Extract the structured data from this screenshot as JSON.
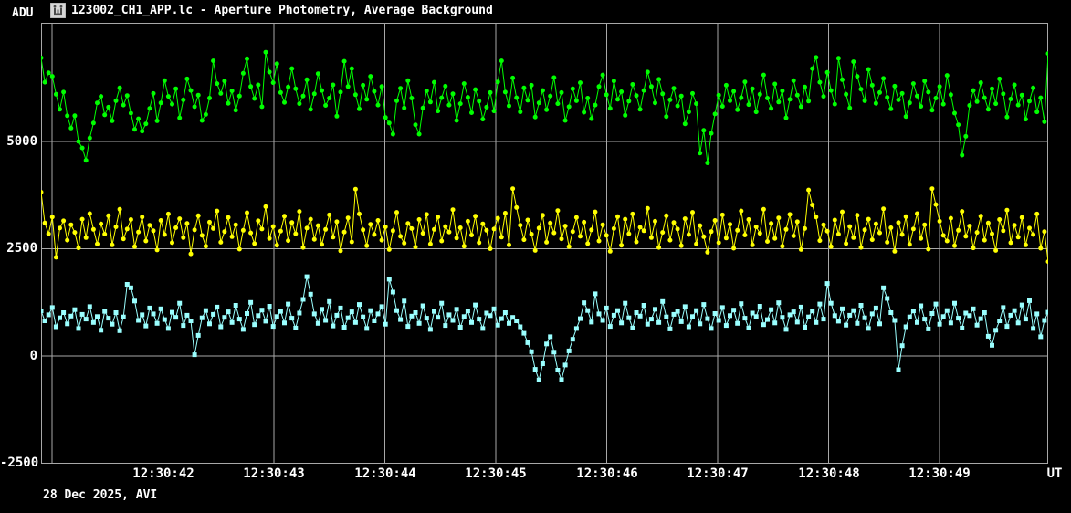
{
  "window": {
    "title": "123002_CH1_APP.lc - Aperture Photometry, Average Background",
    "footer": "28 Dec 2025, AVI",
    "icon": "app-window-icon"
  },
  "colors": {
    "background": "#000000",
    "text": "#FFFFFF",
    "grid": "#A8A8A8",
    "green_series": "#00FF00",
    "yellow_series": "#FFFF00",
    "cyan_series": "#9AFFFF"
  },
  "axes": {
    "y_label": "ADU",
    "x_label": "UT",
    "y_ticks": [
      "5000",
      "2500",
      "0",
      "-2500"
    ],
    "x_ticks": [
      "12:30:42",
      "12:30:43",
      "12:30:44",
      "12:30:45",
      "12:30:46",
      "12:30:47",
      "12:30:48",
      "12:30:49"
    ]
  },
  "chart_data": {
    "type": "line",
    "title": "123002_CH1_APP.lc - Aperture Photometry, Average Background",
    "xlabel": "UT",
    "ylabel": "ADU",
    "ylim": [
      -2510,
      7770
    ],
    "y_ticks": [
      5000,
      2500,
      0,
      -2500
    ],
    "x_ticks": [
      "12:30:42",
      "12:30:43",
      "12:30:44",
      "12:30:45",
      "12:30:46",
      "12:30:47",
      "12:30:48",
      "12:30:49"
    ],
    "grid": true,
    "legend": false,
    "series": [
      {
        "name": "green",
        "color": "#00FF00",
        "marker": "circle",
        "values": [
          6950,
          6380,
          6600,
          6520,
          6100,
          5750,
          6150,
          5600,
          5310,
          5600,
          5000,
          4850,
          4560,
          5080,
          5430,
          5900,
          6050,
          5620,
          5800,
          5480,
          5950,
          6250,
          5850,
          6070,
          5660,
          5280,
          5530,
          5240,
          5410,
          5770,
          6120,
          5480,
          5900,
          6420,
          6050,
          5870,
          6230,
          5550,
          5970,
          6460,
          6190,
          5810,
          6080,
          5490,
          5630,
          6010,
          6880,
          6350,
          6120,
          6410,
          5890,
          6180,
          5730,
          6060,
          6590,
          6930,
          6280,
          6000,
          6320,
          5810,
          7080,
          6620,
          6370,
          6810,
          6140,
          5910,
          6270,
          6700,
          6230,
          5880,
          6060,
          6440,
          5750,
          6110,
          6580,
          6190,
          5840,
          6010,
          6320,
          5590,
          6150,
          6870,
          6280,
          6700,
          6090,
          5760,
          6310,
          5980,
          6520,
          6170,
          5850,
          6280,
          5560,
          5430,
          5170,
          5950,
          6240,
          5780,
          6420,
          6010,
          5390,
          5170,
          5780,
          6180,
          5920,
          6380,
          5710,
          6020,
          6290,
          5850,
          6110,
          5490,
          5880,
          6350,
          6030,
          5670,
          6210,
          5940,
          5520,
          5800,
          6140,
          5710,
          6390,
          6880,
          6150,
          5830,
          6480,
          6020,
          5690,
          6250,
          5960,
          6310,
          5570,
          5900,
          6190,
          5740,
          6060,
          6490,
          5880,
          6140,
          5490,
          5810,
          6230,
          5950,
          6370,
          5680,
          6010,
          5530,
          5850,
          6280,
          6550,
          6090,
          5770,
          6410,
          5980,
          6160,
          5610,
          5940,
          6330,
          6070,
          5750,
          6190,
          6620,
          6280,
          5900,
          6450,
          6110,
          5580,
          5970,
          6240,
          5830,
          6060,
          5410,
          5690,
          6120,
          5880,
          4730,
          5260,
          4500,
          5190,
          5640,
          6080,
          5820,
          6310,
          5950,
          6170,
          5740,
          6020,
          6390,
          5860,
          6230,
          5690,
          6100,
          6550,
          6010,
          5770,
          6340,
          5920,
          6180,
          5550,
          5980,
          6420,
          6080,
          5810,
          6270,
          5940,
          6700,
          6960,
          6380,
          6050,
          6610,
          6190,
          5870,
          6940,
          6440,
          6100,
          5780,
          6860,
          6520,
          6220,
          5950,
          6680,
          6310,
          5890,
          6140,
          6470,
          6030,
          5760,
          6290,
          5970,
          6120,
          5580,
          5900,
          6350,
          6060,
          5820,
          6410,
          6150,
          5730,
          6010,
          6280,
          5870,
          6540,
          6090,
          5660,
          5390,
          4680,
          5120,
          5840,
          6190,
          5930,
          6370,
          6020,
          5750,
          6230,
          5880,
          6460,
          6110,
          5570,
          5990,
          6320,
          5850,
          6080,
          5520,
          5940,
          6250,
          5690,
          6020,
          5460,
          7050
        ]
      },
      {
        "name": "yellow",
        "color": "#FFFF00",
        "marker": "circle",
        "values": [
          3820,
          3100,
          2850,
          3240,
          2300,
          2980,
          3150,
          2700,
          3060,
          2880,
          2520,
          3190,
          2760,
          3320,
          2950,
          2610,
          3080,
          2840,
          3270,
          2590,
          3010,
          3420,
          2730,
          2960,
          3180,
          2550,
          2890,
          3240,
          2680,
          3050,
          2920,
          2470,
          3160,
          2830,
          3310,
          2640,
          2990,
          3200,
          2760,
          3090,
          2380,
          2940,
          3270,
          2810,
          2560,
          3120,
          2970,
          3380,
          2650,
          2900,
          3230,
          2780,
          3060,
          2490,
          2930,
          3340,
          2870,
          2620,
          3150,
          2960,
          3480,
          2740,
          3020,
          2580,
          2910,
          3260,
          2690,
          3110,
          2850,
          3370,
          2530,
          2980,
          3190,
          2720,
          3040,
          2600,
          2950,
          3290,
          2770,
          3130,
          2450,
          2890,
          3220,
          2660,
          3890,
          3310,
          2940,
          2570,
          3070,
          2830,
          3160,
          2700,
          3010,
          2480,
          2920,
          3350,
          2790,
          2630,
          3090,
          2970,
          2540,
          3180,
          2860,
          3300,
          2610,
          2950,
          3240,
          2680,
          3020,
          2890,
          3410,
          2750,
          2990,
          2560,
          3140,
          2820,
          3260,
          2640,
          3080,
          2930,
          2500,
          2960,
          3210,
          2770,
          3330,
          2590,
          3900,
          3460,
          3050,
          2710,
          3170,
          2840,
          2460,
          2980,
          3280,
          2650,
          3100,
          2870,
          3390,
          2730,
          3030,
          2550,
          2900,
          3230,
          2790,
          3120,
          2620,
          2940,
          3360,
          2680,
          3060,
          2810,
          2440,
          2970,
          3250,
          2580,
          3190,
          2850,
          3310,
          2660,
          3000,
          2920,
          3440,
          2760,
          3140,
          2530,
          2880,
          3270,
          2700,
          3110,
          2960,
          2570,
          3200,
          2830,
          3350,
          2610,
          3040,
          2780,
          2420,
          2900,
          3160,
          2640,
          3290,
          2750,
          3070,
          2510,
          2930,
          3380,
          2820,
          3180,
          2590,
          3010,
          2860,
          3420,
          2670,
          3090,
          2740,
          3220,
          2560,
          2950,
          3300,
          2800,
          3130,
          2480,
          2970,
          3870,
          3520,
          3240,
          2690,
          3060,
          2910,
          2550,
          3170,
          2840,
          3360,
          2620,
          3020,
          2760,
          3280,
          2530,
          2940,
          3190,
          2710,
          3080,
          2870,
          3430,
          2650,
          2990,
          2440,
          3110,
          2830,
          3250,
          2600,
          2960,
          3320,
          2740,
          3060,
          2490,
          3900,
          3530,
          3140,
          2810,
          2680,
          3210,
          2570,
          2930,
          3370,
          2790,
          3030,
          2520,
          2880,
          3260,
          2700,
          3100,
          2850,
          2460,
          3180,
          2920,
          3400,
          2640,
          3050,
          2770,
          3230,
          2590,
          2980,
          2830,
          3310,
          2510,
          2900,
          2200
        ]
      },
      {
        "name": "cyan",
        "color": "#9AFFFF",
        "marker": "square",
        "values": [
          1050,
          820,
          960,
          1130,
          680,
          890,
          1010,
          750,
          930,
          1080,
          640,
          970,
          860,
          1150,
          780,
          920,
          600,
          1040,
          880,
          740,
          1010,
          590,
          910,
          1670,
          1590,
          1280,
          830,
          960,
          700,
          1120,
          980,
          760,
          1100,
          850,
          640,
          1020,
          900,
          1230,
          710,
          950,
          820,
          30,
          480,
          890,
          1060,
          750,
          970,
          1140,
          680,
          900,
          1030,
          780,
          1180,
          860,
          620,
          990,
          1250,
          730,
          940,
          1070,
          810,
          1160,
          690,
          920,
          1040,
          770,
          1210,
          880,
          650,
          1000,
          1320,
          1850,
          1440,
          980,
          760,
          1090,
          830,
          1270,
          700,
          950,
          1120,
          670,
          890,
          1030,
          780,
          1200,
          910,
          640,
          1060,
          820,
          980,
          1150,
          740,
          1790,
          1490,
          1060,
          850,
          1280,
          690,
          930,
          1010,
          760,
          1170,
          880,
          620,
          1040,
          900,
          1230,
          710,
          960,
          830,
          1090,
          670,
          920,
          1050,
          780,
          1190,
          860,
          640,
          1000,
          940,
          1100,
          720,
          870,
          1010,
          760,
          900,
          820,
          680,
          530,
          310,
          100,
          -310,
          -560,
          -180,
          280,
          450,
          90,
          -330,
          -550,
          -210,
          120,
          390,
          640,
          870,
          1240,
          1060,
          790,
          1450,
          980,
          830,
          1120,
          690,
          950,
          1060,
          770,
          1230,
          890,
          650,
          1010,
          930,
          1180,
          740,
          860,
          1090,
          780,
          1270,
          910,
          630,
          970,
          1040,
          800,
          1150,
          680,
          920,
          1060,
          750,
          1200,
          870,
          640,
          990,
          830,
          1130,
          710,
          940,
          1070,
          760,
          1220,
          880,
          650,
          1000,
          920,
          1160,
          730,
          850,
          1080,
          770,
          1240,
          900,
          620,
          960,
          1030,
          790,
          1140,
          670,
          910,
          1050,
          780,
          1210,
          860,
          1690,
          1230,
          940,
          810,
          1100,
          720,
          950,
          1060,
          760,
          1180,
          890,
          640,
          980,
          1120,
          750,
          1590,
          1340,
          1010,
          830,
          -320,
          240,
          680,
          910,
          1050,
          780,
          1170,
          860,
          630,
          990,
          1210,
          740,
          920,
          1060,
          770,
          1230,
          880,
          650,
          1000,
          940,
          1100,
          720,
          870,
          1010,
          460,
          250,
          600,
          820,
          1130,
          690,
          950,
          1060,
          770,
          1190,
          860,
          1290,
          640,
          980,
          450,
          830,
          1020
        ]
      }
    ]
  }
}
